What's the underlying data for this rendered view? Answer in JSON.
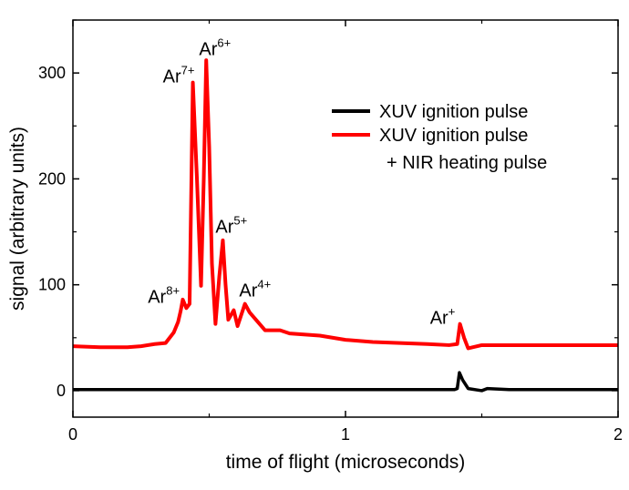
{
  "chart_data": {
    "type": "line",
    "title": "",
    "xlabel": "time of flight (microseconds)",
    "ylabel": "signal (arbitrary units)",
    "xlim": [
      0,
      2
    ],
    "ylim": [
      -25,
      350
    ],
    "xticks": [
      0,
      1,
      2
    ],
    "yticks": [
      0,
      100,
      200,
      300
    ],
    "grid": false,
    "legend_placement": "top-right",
    "series": [
      {
        "name": "XUV ignition pulse",
        "color": "#000000",
        "points": [
          [
            0,
            1
          ],
          [
            0.2,
            1
          ],
          [
            0.5,
            1
          ],
          [
            0.8,
            1
          ],
          [
            1.0,
            1
          ],
          [
            1.2,
            1
          ],
          [
            1.4,
            1
          ],
          [
            1.41,
            2
          ],
          [
            1.418,
            17
          ],
          [
            1.43,
            10
          ],
          [
            1.45,
            2
          ],
          [
            1.5,
            0
          ],
          [
            1.52,
            2
          ],
          [
            1.6,
            1
          ],
          [
            1.8,
            1
          ],
          [
            2.0,
            1
          ]
        ]
      },
      {
        "name": "XUV ignition pulse\n+ NIR heating pulse",
        "legend_lines": [
          "XUV ignition pulse",
          "+ NIR heating pulse"
        ],
        "color": "#ff0000",
        "points": [
          [
            0,
            42
          ],
          [
            0.1,
            41
          ],
          [
            0.2,
            41
          ],
          [
            0.25,
            42
          ],
          [
            0.3,
            44
          ],
          [
            0.34,
            45
          ],
          [
            0.37,
            55
          ],
          [
            0.386,
            65
          ],
          [
            0.395,
            75
          ],
          [
            0.403,
            86
          ],
          [
            0.416,
            78
          ],
          [
            0.428,
            82
          ],
          [
            0.44,
            291
          ],
          [
            0.455,
            200
          ],
          [
            0.47,
            99
          ],
          [
            0.48,
            200
          ],
          [
            0.489,
            312
          ],
          [
            0.5,
            230
          ],
          [
            0.51,
            120
          ],
          [
            0.523,
            63
          ],
          [
            0.537,
            108
          ],
          [
            0.55,
            142
          ],
          [
            0.56,
            100
          ],
          [
            0.57,
            67
          ],
          [
            0.59,
            76
          ],
          [
            0.604,
            61
          ],
          [
            0.631,
            82
          ],
          [
            0.648,
            74
          ],
          [
            0.678,
            65
          ],
          [
            0.705,
            57
          ],
          [
            0.76,
            57
          ],
          [
            0.795,
            54
          ],
          [
            0.906,
            52
          ],
          [
            1.0,
            48
          ],
          [
            1.1,
            46
          ],
          [
            1.2,
            45
          ],
          [
            1.3,
            44
          ],
          [
            1.38,
            43
          ],
          [
            1.41,
            44
          ],
          [
            1.42,
            63
          ],
          [
            1.435,
            50
          ],
          [
            1.45,
            40
          ],
          [
            1.5,
            43
          ],
          [
            1.6,
            43
          ],
          [
            1.8,
            43
          ],
          [
            2.0,
            43
          ]
        ]
      }
    ],
    "annotations": [
      {
        "base": "Ar",
        "sup": "8+",
        "x": 0.275,
        "y": 83
      },
      {
        "base": "Ar",
        "sup": "7+",
        "x": 0.33,
        "y": 291
      },
      {
        "base": "Ar",
        "sup": "6+",
        "x": 0.463,
        "y": 317
      },
      {
        "base": "Ar",
        "sup": "5+",
        "x": 0.523,
        "y": 149
      },
      {
        "base": "Ar",
        "sup": "4+",
        "x": 0.61,
        "y": 89
      },
      {
        "base": "Ar",
        "sup": "+",
        "x": 1.31,
        "y": 63
      }
    ]
  }
}
